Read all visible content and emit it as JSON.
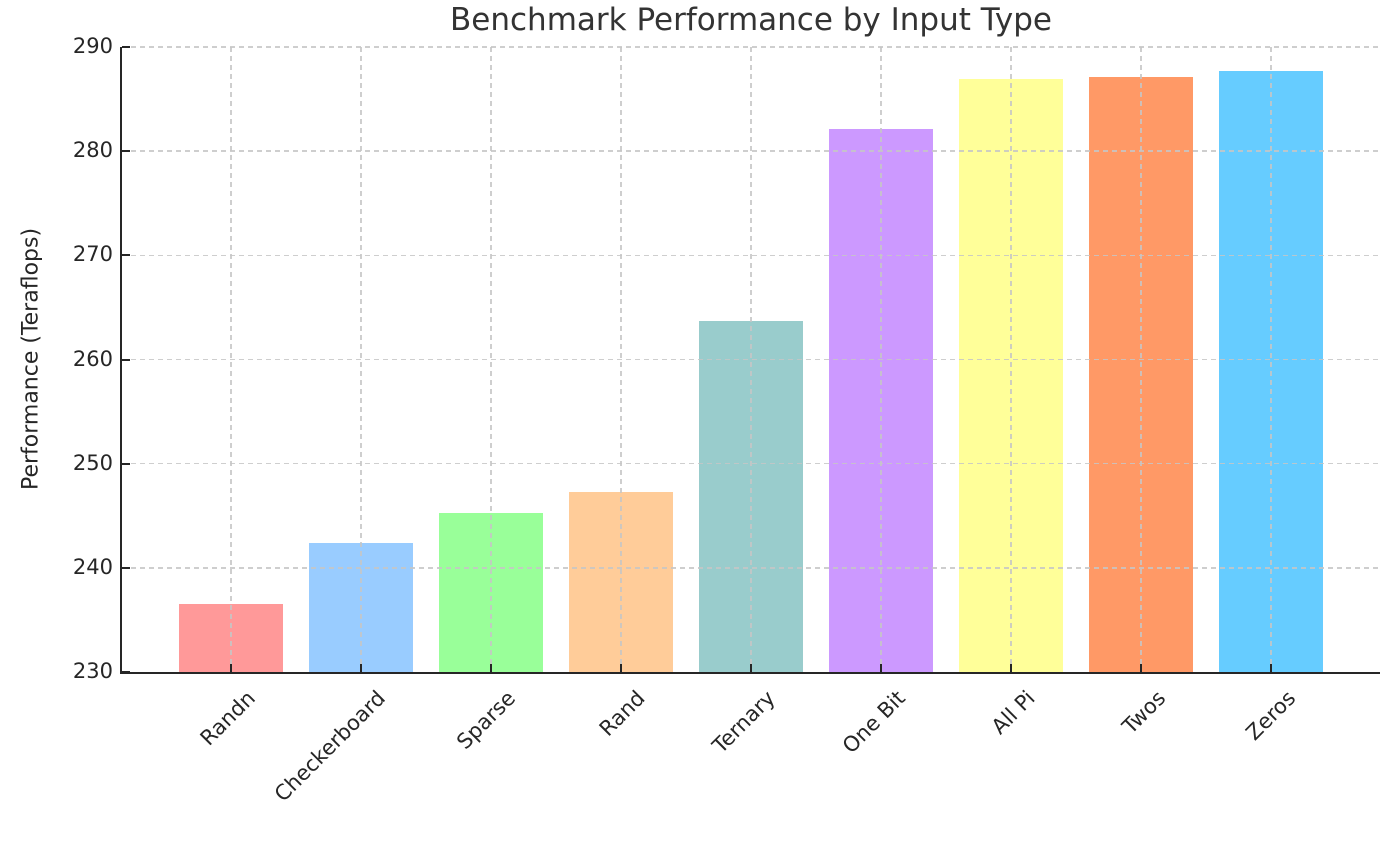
{
  "chart_data": {
    "type": "bar",
    "title": "Benchmark Performance by Input Type",
    "xlabel": "",
    "ylabel": "Performance (Teraflops)",
    "categories": [
      "Randn",
      "Checkerboard",
      "Sparse",
      "Rand",
      "Ternary",
      "One Bit",
      "All Pi",
      "Twos",
      "Zeros"
    ],
    "values": [
      236.5,
      242.4,
      245.3,
      247.3,
      263.7,
      282.1,
      286.9,
      287.1,
      287.7
    ],
    "bar_colors": [
      "#ff9999",
      "#99ccff",
      "#99ff99",
      "#ffcc99",
      "#99cccc",
      "#cc99ff",
      "#ffff99",
      "#ff9966",
      "#66ccff"
    ],
    "ylim": [
      230,
      290
    ],
    "yticks": [
      230,
      240,
      250,
      260,
      270,
      280,
      290
    ],
    "x_tick_label_rotation": 45,
    "grid": "dashed-both-axes",
    "grid_color": "#c6c6c6",
    "axis_color": "#262626",
    "text_color": "#262626",
    "title_color": "#333333",
    "background_color": "#ffffff",
    "legend": "none"
  }
}
